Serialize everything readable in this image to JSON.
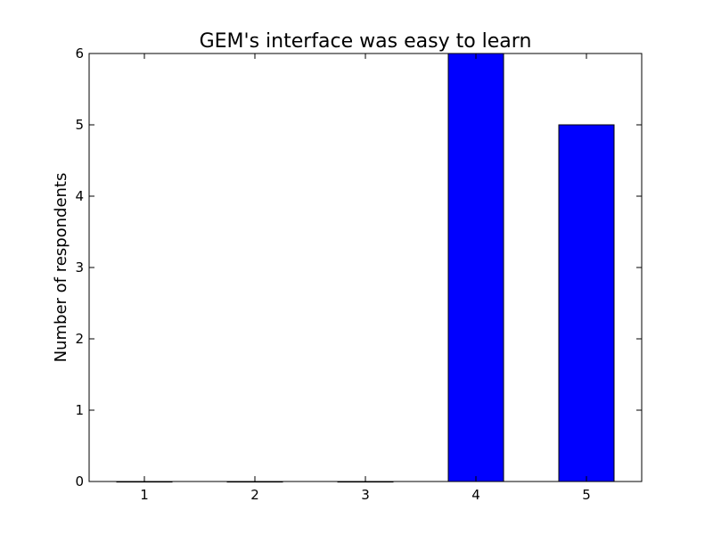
{
  "chart_data": {
    "type": "bar",
    "title": "GEM's interface was easy to learn",
    "xlabel": "",
    "ylabel": "Number of respondents",
    "categories": [
      "1",
      "2",
      "3",
      "4",
      "5"
    ],
    "values": [
      0,
      0,
      0,
      6,
      5
    ],
    "xlim": [
      0.5,
      5.5
    ],
    "ylim": [
      0,
      6
    ],
    "yticks": [
      "0",
      "1",
      "2",
      "3",
      "4",
      "5",
      "6"
    ],
    "grid": false,
    "legend": "none",
    "colors": {
      "bar_fill": "#0000ff",
      "bar_edge": "#000000",
      "axes": "#000000",
      "background": "#ffffff"
    }
  }
}
